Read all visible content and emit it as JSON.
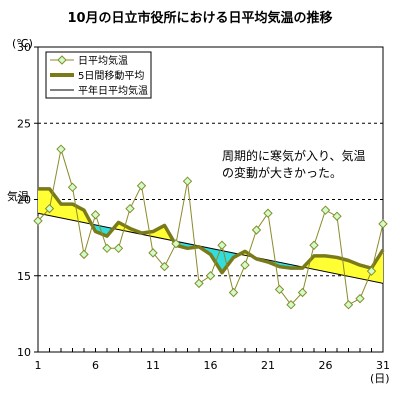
{
  "chart_data": {
    "type": "line",
    "title": "10月の日立市役所における日平均気温の推移",
    "unit_label": "(℃)",
    "ylabel": "気温",
    "xlabel": "(日)",
    "ylim": [
      10,
      30
    ],
    "xlim": [
      1,
      31
    ],
    "yticks": [
      10,
      15,
      20,
      25,
      30
    ],
    "xticks": [
      1,
      6,
      11,
      16,
      21,
      26,
      31
    ],
    "gridlines_y": [
      15,
      20,
      25
    ],
    "grid_style": "dashed horizontal",
    "legend_position": "top-left",
    "annotation": [
      "周期的に寒気が入り、気温",
      "の変動が大きかった。"
    ],
    "fill_colors": {
      "above_normal": "#ffff33",
      "below_normal": "#33dddd"
    },
    "series": [
      {
        "name": "日平均気温",
        "style": "line-with-diamond-markers",
        "color": "#8b8b2a",
        "marker_fill": "#ccffcc",
        "x": [
          1,
          2,
          3,
          4,
          5,
          6,
          7,
          8,
          9,
          10,
          11,
          12,
          13,
          14,
          15,
          16,
          17,
          18,
          19,
          20,
          21,
          22,
          23,
          24,
          25,
          26,
          27,
          28,
          29,
          30,
          31
        ],
        "values": [
          18.6,
          19.4,
          23.3,
          20.8,
          16.4,
          19.0,
          16.8,
          16.8,
          19.4,
          20.9,
          16.5,
          15.6,
          17.1,
          21.2,
          14.5,
          15.0,
          17.0,
          13.9,
          15.7,
          18.0,
          19.1,
          14.1,
          13.1,
          13.9,
          17.0,
          19.3,
          18.9,
          13.1,
          13.5,
          15.3,
          18.4
        ]
      },
      {
        "name": "5日間移動平均",
        "style": "thick-line",
        "color": "#7a7a1a",
        "x": [
          1,
          2,
          3,
          4,
          5,
          6,
          7,
          8,
          9,
          10,
          11,
          12,
          13,
          14,
          15,
          16,
          17,
          18,
          19,
          20,
          21,
          22,
          23,
          24,
          25,
          26,
          27,
          28,
          29,
          30,
          31
        ],
        "values": [
          20.7,
          20.7,
          19.7,
          19.7,
          19.3,
          17.9,
          17.6,
          18.5,
          18.1,
          17.8,
          17.9,
          18.3,
          17.0,
          16.8,
          16.9,
          16.4,
          15.2,
          16.2,
          16.6,
          16.1,
          15.9,
          15.6,
          15.5,
          15.5,
          16.3,
          16.3,
          16.2,
          16.0,
          15.7,
          15.5,
          16.7
        ]
      },
      {
        "name": "平年日平均気温",
        "style": "thin-line",
        "color": "#000000",
        "x": [
          1,
          31
        ],
        "values": [
          19.1,
          14.5
        ]
      }
    ]
  }
}
